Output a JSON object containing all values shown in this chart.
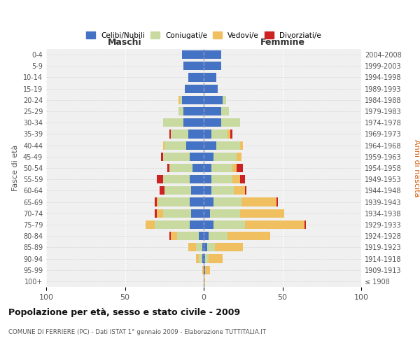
{
  "age_groups": [
    "100+",
    "95-99",
    "90-94",
    "85-89",
    "80-84",
    "75-79",
    "70-74",
    "65-69",
    "60-64",
    "55-59",
    "50-54",
    "45-49",
    "40-44",
    "35-39",
    "30-34",
    "25-29",
    "20-24",
    "15-19",
    "10-14",
    "5-9",
    "0-4"
  ],
  "birth_years": [
    "≤ 1908",
    "1909-1913",
    "1914-1918",
    "1919-1923",
    "1924-1928",
    "1929-1933",
    "1934-1938",
    "1939-1943",
    "1944-1948",
    "1949-1953",
    "1954-1958",
    "1959-1963",
    "1964-1968",
    "1969-1973",
    "1974-1978",
    "1979-1983",
    "1984-1988",
    "1989-1993",
    "1994-1998",
    "1999-2003",
    "2004-2008"
  ],
  "males": {
    "celibi": [
      0,
      0,
      1,
      1,
      3,
      9,
      8,
      9,
      8,
      9,
      7,
      9,
      11,
      10,
      13,
      13,
      14,
      12,
      10,
      13,
      14
    ],
    "coniugati": [
      0,
      0,
      2,
      4,
      14,
      22,
      18,
      20,
      17,
      17,
      15,
      17,
      14,
      11,
      13,
      3,
      1,
      0,
      0,
      0,
      0
    ],
    "vedovi": [
      0,
      1,
      2,
      5,
      4,
      6,
      4,
      1,
      0,
      0,
      0,
      0,
      1,
      0,
      0,
      0,
      1,
      0,
      0,
      0,
      0
    ],
    "divorziati": [
      0,
      0,
      0,
      0,
      1,
      0,
      1,
      1,
      3,
      4,
      1,
      1,
      0,
      1,
      0,
      0,
      0,
      0,
      0,
      0,
      0
    ]
  },
  "females": {
    "nubili": [
      0,
      1,
      1,
      2,
      3,
      6,
      4,
      6,
      5,
      5,
      5,
      6,
      8,
      5,
      11,
      11,
      12,
      9,
      8,
      11,
      11
    ],
    "coniugate": [
      0,
      0,
      2,
      5,
      12,
      20,
      19,
      18,
      14,
      13,
      13,
      15,
      15,
      10,
      12,
      5,
      2,
      0,
      0,
      0,
      0
    ],
    "vedove": [
      1,
      3,
      9,
      18,
      27,
      38,
      28,
      22,
      7,
      5,
      3,
      3,
      2,
      2,
      0,
      0,
      0,
      0,
      0,
      0,
      0
    ],
    "divorziate": [
      0,
      0,
      0,
      0,
      0,
      1,
      0,
      1,
      1,
      3,
      4,
      0,
      0,
      1,
      0,
      0,
      0,
      0,
      0,
      0,
      0
    ]
  },
  "colors": {
    "celibi": "#4472C4",
    "coniugati": "#c8daa0",
    "vedovi": "#f0c060",
    "divorziati": "#cc2222"
  },
  "xlim": [
    -100,
    100
  ],
  "xticks": [
    -100,
    -50,
    0,
    50,
    100
  ],
  "xticklabels": [
    "100",
    "50",
    "0",
    "50",
    "100"
  ],
  "title_main": "Popolazione per età, sesso e stato civile - 2009",
  "title_sub": "COMUNE DI FERRIERE (PC) - Dati ISTAT 1° gennaio 2009 - Elaborazione TUTTITALIA.IT",
  "ylabel_left": "Fasce di età",
  "ylabel_right": "Anni di nascita",
  "label_maschi": "Maschi",
  "label_femmine": "Femmine",
  "legend_labels": [
    "Celibi/Nubili",
    "Coniugati/e",
    "Vedovi/e",
    "Divorziati/e"
  ],
  "background_color": "#ffffff",
  "plot_bg": "#f0f0f0",
  "bar_height": 0.75
}
